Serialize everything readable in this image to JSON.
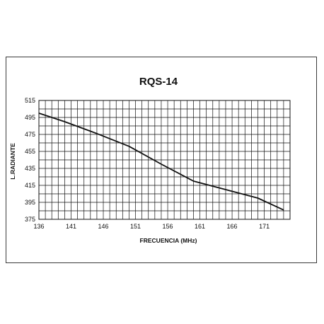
{
  "chart_data": {
    "type": "line",
    "title": "RQS-14",
    "xlabel": "FRECUENCIA  (MHz)",
    "ylabel": "L.RADIANTE",
    "xlim": [
      136,
      175
    ],
    "ylim": [
      375,
      515
    ],
    "x_ticks": [
      136,
      141,
      146,
      151,
      156,
      161,
      166,
      171
    ],
    "y_ticks": [
      375,
      395,
      415,
      435,
      455,
      475,
      495,
      515
    ],
    "grid": true,
    "series": [
      {
        "color": "#111111",
        "points": [
          [
            136,
            500
          ],
          [
            140,
            490
          ],
          [
            145,
            476
          ],
          [
            150,
            461
          ],
          [
            155,
            440
          ],
          [
            160,
            420
          ],
          [
            165,
            410
          ],
          [
            170,
            400
          ],
          [
            174,
            386
          ]
        ]
      }
    ]
  }
}
